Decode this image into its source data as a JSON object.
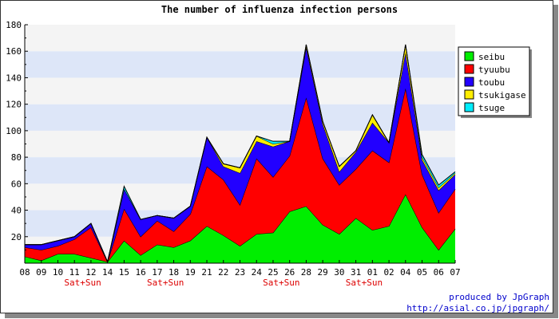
{
  "chart_data": {
    "type": "area",
    "stacked": true,
    "title": "The number of influenza infection persons",
    "xlabel": "",
    "ylabel": "",
    "ylim": [
      0,
      180
    ],
    "y_ticks": [
      20,
      40,
      60,
      80,
      100,
      120,
      140,
      160,
      180
    ],
    "categories": [
      "08",
      "09",
      "10",
      "11",
      "12",
      "14",
      "15",
      "16",
      "17",
      "18",
      "19",
      "21",
      "22",
      "23",
      "24",
      "25",
      "26",
      "28",
      "29",
      "30",
      "31",
      "01",
      "02",
      "04",
      "05",
      "06",
      "07"
    ],
    "weekend_markers": [
      {
        "category": "11",
        "text": "Sat+Sun"
      },
      {
        "category": "17",
        "text": "Sat+Sun"
      },
      {
        "category": "25",
        "text": "Sat+Sun"
      },
      {
        "category": "31",
        "text": "Sat+Sun"
      }
    ],
    "grid": "horizontal",
    "legend_position": "top-right",
    "series": [
      {
        "name": "seibu",
        "color": "#00ee00",
        "values": [
          5,
          2,
          7,
          7,
          4,
          1,
          17,
          6,
          14,
          12,
          17,
          28,
          21,
          13,
          22,
          23,
          39,
          43,
          29,
          22,
          34,
          25,
          28,
          52,
          27,
          10,
          26
        ]
      },
      {
        "name": "tyuubu",
        "color": "#ff0000",
        "values": [
          7,
          8,
          6,
          11,
          23,
          0,
          24,
          14,
          18,
          12,
          20,
          45,
          42,
          31,
          57,
          42,
          42,
          82,
          50,
          37,
          37,
          60,
          48,
          80,
          40,
          28,
          30
        ]
      },
      {
        "name": "toubu",
        "color": "#2200ff",
        "values": [
          2,
          4,
          4,
          2,
          3,
          0,
          15,
          13,
          4,
          10,
          6,
          22,
          10,
          24,
          13,
          23,
          11,
          38,
          26,
          10,
          13,
          21,
          15,
          27,
          11,
          17,
          11
        ]
      },
      {
        "name": "tsukigase",
        "color": "#ffee00",
        "values": [
          0,
          0,
          0,
          0,
          0,
          0,
          0,
          0,
          0,
          0,
          0,
          0,
          2,
          4,
          4,
          2,
          0,
          2,
          2,
          4,
          1,
          6,
          0,
          6,
          2,
          2,
          1
        ]
      },
      {
        "name": "tsuge",
        "color": "#00eeff",
        "values": [
          0,
          0,
          0,
          0,
          0,
          0,
          2,
          0,
          0,
          0,
          0,
          0,
          0,
          0,
          0,
          2,
          0,
          0,
          0,
          0,
          0,
          0,
          0,
          0,
          2,
          2,
          1
        ]
      }
    ]
  },
  "footer": {
    "credit": "produced by JpGraph",
    "url": "http://asial.co.jp/jpgraph/"
  }
}
